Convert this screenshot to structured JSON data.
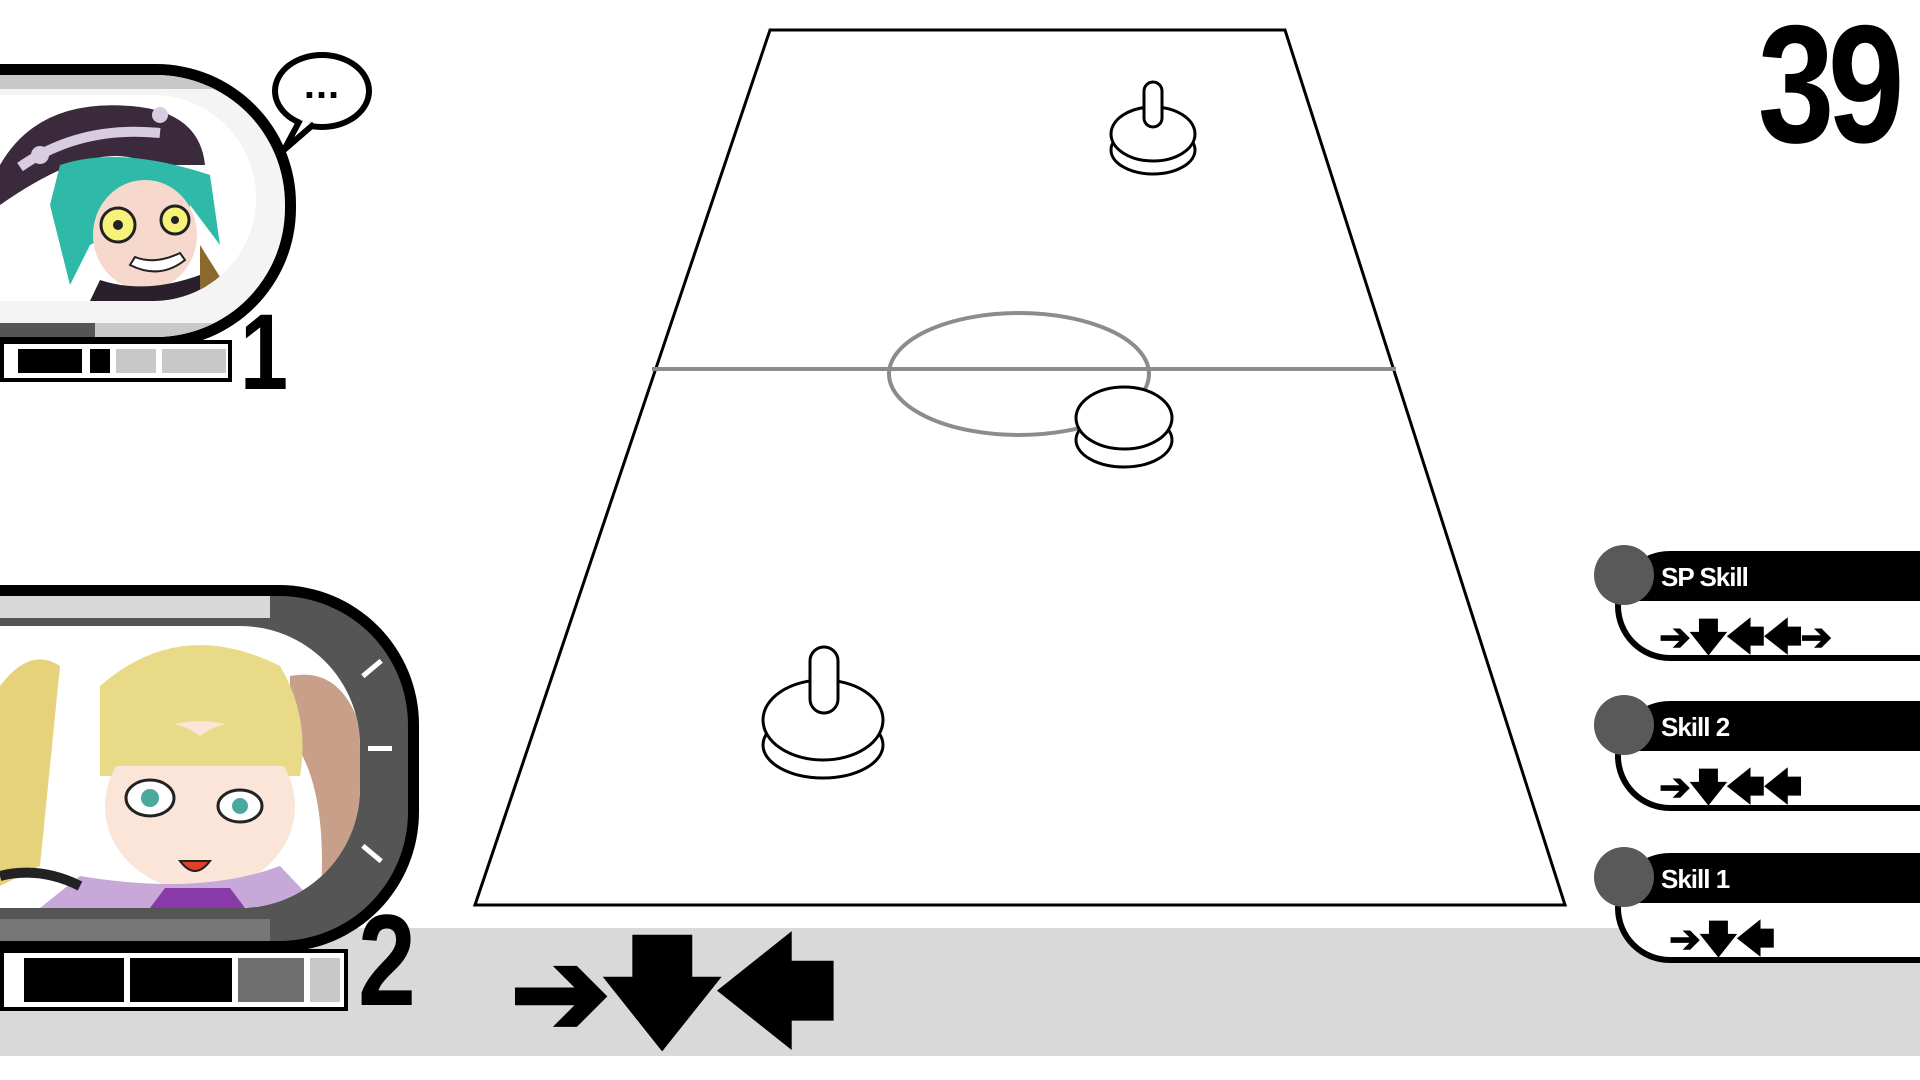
{
  "timer": "39",
  "players": [
    {
      "score": "1",
      "speech": "...",
      "character": "teal-hair-boy-portrait",
      "frame_color": "#000000",
      "bar_segments": [
        "filled",
        "filled",
        "filled-small",
        "empty",
        "empty"
      ]
    },
    {
      "score": "2",
      "character": "blonde-pigtail-girl-portrait",
      "frame_color": "#000000",
      "bar_segments": [
        "filled",
        "filled",
        "grey",
        "empty"
      ]
    }
  ],
  "input_sequence": "➔🡇🡄",
  "skills": [
    {
      "name": "SP Skill",
      "arrows": "➔🡇🡄🡄➔"
    },
    {
      "name": "Skill 2",
      "arrows": "➔🡇🡄🡄"
    },
    {
      "name": "Skill 1",
      "arrows": "➔🡇🡄"
    }
  ],
  "colors": {
    "bottom_bar": "#d9d9d9",
    "center_line": "#8c8c8c",
    "skill_dot": "#595959"
  }
}
